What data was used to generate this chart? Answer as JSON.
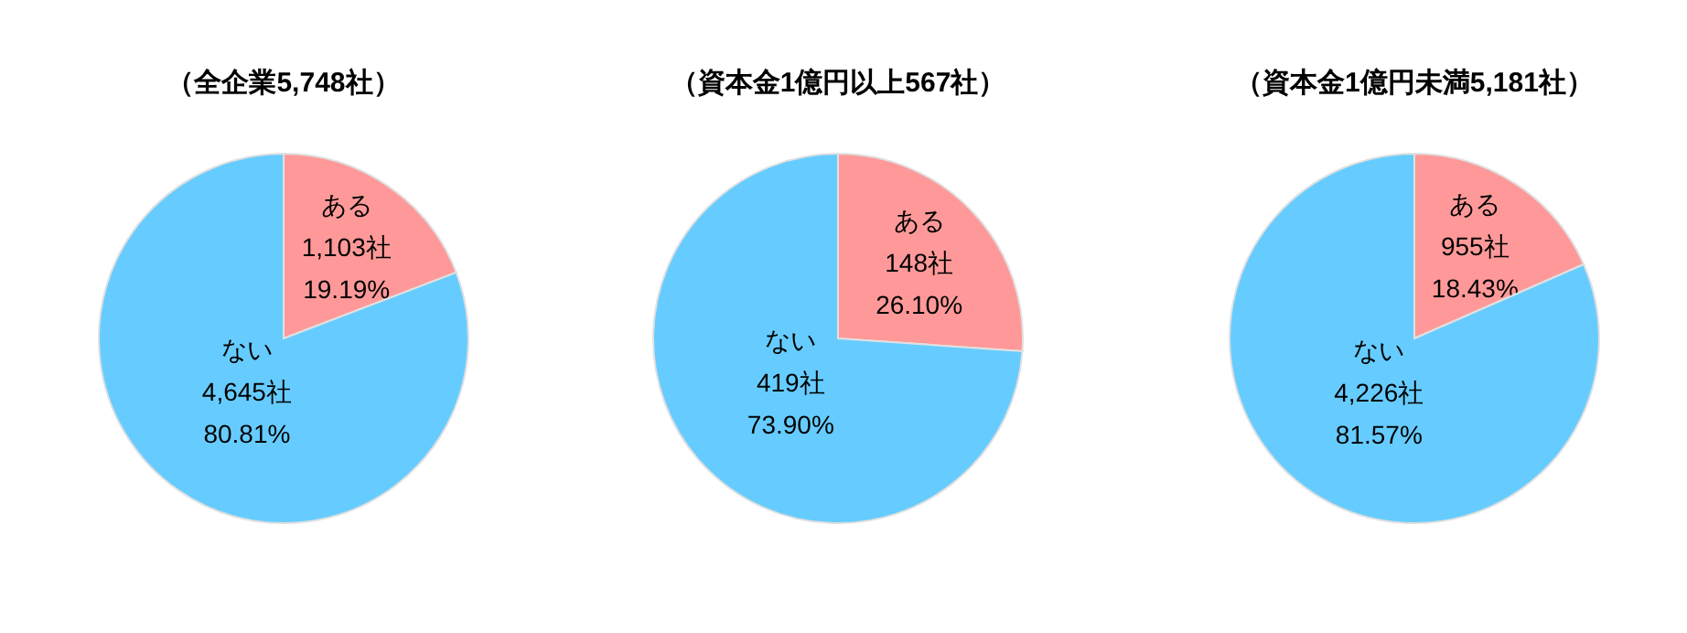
{
  "chart_data": [
    {
      "type": "pie",
      "title": "（全企業5,748社）",
      "categories": [
        "ある",
        "ない"
      ],
      "values": [
        1103,
        4645
      ],
      "colors": [
        "#ff9999",
        "#66ccff"
      ],
      "value_labels": [
        "1,103社\n19.19%",
        "4,645社\n80.81%"
      ]
    },
    {
      "type": "pie",
      "title": "（資本金1億円以上567社）",
      "categories": [
        "ある",
        "ない"
      ],
      "values": [
        148,
        419
      ],
      "colors": [
        "#ff9999",
        "#66ccff"
      ],
      "value_labels": [
        "148社\n26.10%",
        "419社\n73.90%"
      ]
    },
    {
      "type": "pie",
      "title": "（資本金1億円未満5,181社）",
      "categories": [
        "ある",
        "ない"
      ],
      "values": [
        955,
        4226
      ],
      "colors": [
        "#ff9999",
        "#66ccff"
      ],
      "value_labels": [
        "955社\n18.43%",
        "4,226社\n81.57%"
      ]
    }
  ]
}
